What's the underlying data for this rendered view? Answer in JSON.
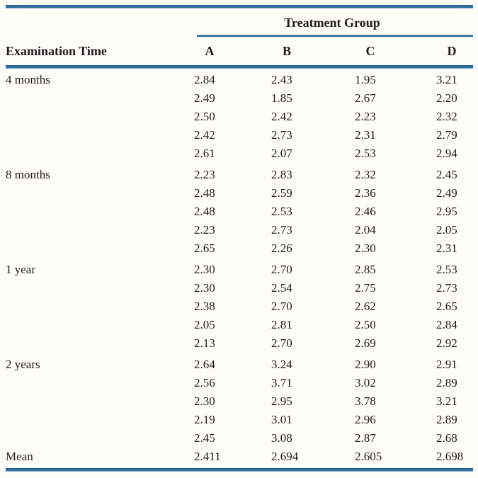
{
  "table": {
    "spanner_header": "Treatment Group",
    "row_header": "Examination Time",
    "columns": [
      "A",
      "B",
      "C",
      "D"
    ],
    "groups": [
      {
        "label": "4 months",
        "rows": [
          [
            "2.84",
            "2.43",
            "1.95",
            "3.21"
          ],
          [
            "2.49",
            "1.85",
            "2.67",
            "2.20"
          ],
          [
            "2.50",
            "2.42",
            "2.23",
            "2.32"
          ],
          [
            "2.42",
            "2.73",
            "2.31",
            "2.79"
          ],
          [
            "2.61",
            "2.07",
            "2.53",
            "2.94"
          ]
        ]
      },
      {
        "label": "8 months",
        "rows": [
          [
            "2.23",
            "2.83",
            "2.32",
            "2.45"
          ],
          [
            "2.48",
            "2.59",
            "2.36",
            "2.49"
          ],
          [
            "2.48",
            "2.53",
            "2.46",
            "2.95"
          ],
          [
            "2.23",
            "2.73",
            "2.04",
            "2.05"
          ],
          [
            "2.65",
            "2.26",
            "2.30",
            "2.31"
          ]
        ]
      },
      {
        "label": "1 year",
        "rows": [
          [
            "2.30",
            "2.70",
            "2.85",
            "2.53"
          ],
          [
            "2.30",
            "2.54",
            "2.75",
            "2.73"
          ],
          [
            "2.38",
            "2.70",
            "2.62",
            "2.65"
          ],
          [
            "2.05",
            "2.81",
            "2.50",
            "2.84"
          ],
          [
            "2.13",
            "2.70",
            "2.69",
            "2.92"
          ]
        ]
      },
      {
        "label": "2 years",
        "rows": [
          [
            "2.64",
            "3.24",
            "2.90",
            "2.91"
          ],
          [
            "2.56",
            "3.71",
            "3.02",
            "2.89"
          ],
          [
            "2.30",
            "2.95",
            "3.78",
            "3.21"
          ],
          [
            "2.19",
            "3.01",
            "2.96",
            "2.89"
          ],
          [
            "2.45",
            "3.08",
            "2.87",
            "2.68"
          ]
        ]
      }
    ],
    "summary": {
      "label": "Mean",
      "values": [
        "2.411",
        "2.694",
        "2.605",
        "2.698"
      ]
    }
  },
  "chart_data": {
    "type": "table",
    "title": "Treatment Group",
    "row_header": "Examination Time",
    "columns": [
      "A",
      "B",
      "C",
      "D"
    ],
    "row_groups": [
      "4 months",
      "8 months",
      "1 year",
      "2 years"
    ],
    "values_by_group": {
      "4 months": [
        [
          2.84,
          2.43,
          1.95,
          3.21
        ],
        [
          2.49,
          1.85,
          2.67,
          2.2
        ],
        [
          2.5,
          2.42,
          2.23,
          2.32
        ],
        [
          2.42,
          2.73,
          2.31,
          2.79
        ],
        [
          2.61,
          2.07,
          2.53,
          2.94
        ]
      ],
      "8 months": [
        [
          2.23,
          2.83,
          2.32,
          2.45
        ],
        [
          2.48,
          2.59,
          2.36,
          2.49
        ],
        [
          2.48,
          2.53,
          2.46,
          2.95
        ],
        [
          2.23,
          2.73,
          2.04,
          2.05
        ],
        [
          2.65,
          2.26,
          2.3,
          2.31
        ]
      ],
      "1 year": [
        [
          2.3,
          2.7,
          2.85,
          2.53
        ],
        [
          2.3,
          2.54,
          2.75,
          2.73
        ],
        [
          2.38,
          2.7,
          2.62,
          2.65
        ],
        [
          2.05,
          2.81,
          2.5,
          2.84
        ],
        [
          2.13,
          2.7,
          2.69,
          2.92
        ]
      ],
      "2 years": [
        [
          2.64,
          3.24,
          2.9,
          2.91
        ],
        [
          2.56,
          3.71,
          3.02,
          2.89
        ],
        [
          2.3,
          2.95,
          3.78,
          3.21
        ],
        [
          2.19,
          3.01,
          2.96,
          2.89
        ],
        [
          2.45,
          3.08,
          2.87,
          2.68
        ]
      ]
    },
    "column_means": [
      2.411,
      2.694,
      2.605,
      2.698
    ]
  },
  "colors": {
    "rule_blue": "#34709f",
    "text": "#1e1c1a",
    "background": "#fefdf8"
  }
}
